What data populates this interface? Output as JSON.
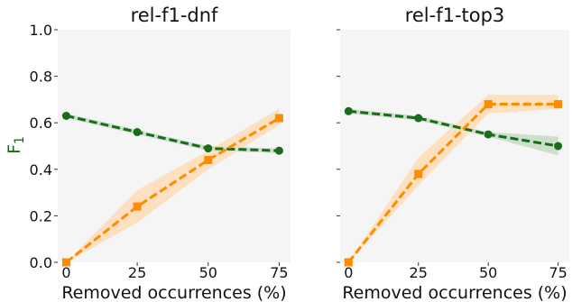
{
  "colors": {
    "green": "#1a6b1a",
    "orange": "#ff8c00",
    "green_band": "#b9d6b9",
    "orange_band": "#ffd7a8",
    "panel_bg": "#f5f5f5"
  },
  "ylabel": {
    "main": "F",
    "sub": "1"
  },
  "chart_data": [
    {
      "type": "line",
      "title": "rel-f1-dnf",
      "xlabel": "Removed occurrences (%)",
      "x": [
        0,
        25,
        50,
        75
      ],
      "xlim": [
        -3,
        79
      ],
      "ylim": [
        0,
        1.0
      ],
      "yticks": [
        0.0,
        0.2,
        0.4,
        0.6,
        0.8,
        1.0
      ],
      "ytick_labels": [
        "0.0",
        "0.2",
        "0.4",
        "0.6",
        "0.8",
        "1.0"
      ],
      "xticks": [
        0,
        25,
        50,
        75
      ],
      "series": [
        {
          "color": "green",
          "marker": "circle",
          "dashed": true,
          "values": [
            0.63,
            0.56,
            0.49,
            0.48
          ],
          "lower": [
            0.62,
            0.55,
            0.48,
            0.47
          ],
          "upper": [
            0.64,
            0.57,
            0.5,
            0.49
          ]
        },
        {
          "color": "orange",
          "marker": "square",
          "dashed": true,
          "values": [
            0.0,
            0.24,
            0.44,
            0.62
          ],
          "lower": [
            0.0,
            0.17,
            0.4,
            0.59
          ],
          "upper": [
            0.0,
            0.31,
            0.48,
            0.66
          ]
        }
      ]
    },
    {
      "type": "line",
      "title": "rel-f1-top3",
      "xlabel": "Removed occurrences (%)",
      "x": [
        0,
        25,
        50,
        75
      ],
      "xlim": [
        -3,
        79
      ],
      "ylim": [
        0,
        1.0
      ],
      "yticks": [
        0.0,
        0.2,
        0.4,
        0.6,
        0.8,
        1.0
      ],
      "ytick_labels": [],
      "xticks": [
        0,
        25,
        50,
        75
      ],
      "series": [
        {
          "color": "green",
          "marker": "circle",
          "dashed": true,
          "values": [
            0.65,
            0.62,
            0.55,
            0.5
          ],
          "lower": [
            0.64,
            0.61,
            0.54,
            0.46
          ],
          "upper": [
            0.66,
            0.63,
            0.56,
            0.54
          ]
        },
        {
          "color": "orange",
          "marker": "square",
          "dashed": true,
          "values": [
            0.0,
            0.38,
            0.68,
            0.68
          ],
          "lower": [
            0.0,
            0.33,
            0.64,
            0.66
          ],
          "upper": [
            0.0,
            0.45,
            0.72,
            0.72
          ]
        }
      ]
    }
  ]
}
